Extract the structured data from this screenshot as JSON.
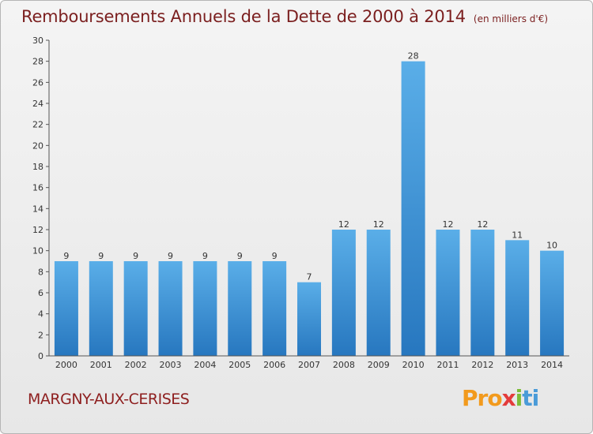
{
  "header": {
    "title": "Remboursements Annuels de la Dette de 2000 à 2014",
    "unit": "(en milliers d'€)"
  },
  "footer": {
    "commune": "MARGNY-AUX-CERISES",
    "logo": {
      "p1": "Pro",
      "p2": "x",
      "p3": "i",
      "p4": "ti"
    }
  },
  "colors": {
    "bar_top": "#5aaee8",
    "bar_bottom": "#2777bf",
    "title": "#7b1f1f"
  },
  "chart_data": {
    "type": "bar",
    "title": "Remboursements Annuels de la Dette de 2000 à 2014",
    "categories": [
      "2000",
      "2001",
      "2002",
      "2003",
      "2004",
      "2005",
      "2006",
      "2007",
      "2008",
      "2009",
      "2010",
      "2011",
      "2012",
      "2013",
      "2014"
    ],
    "values": [
      9,
      9,
      9,
      9,
      9,
      9,
      9,
      7,
      12,
      12,
      28,
      12,
      12,
      11,
      10
    ],
    "ylim": [
      0,
      30
    ],
    "yticks": [
      0,
      2,
      4,
      6,
      8,
      10,
      12,
      14,
      16,
      18,
      20,
      22,
      24,
      26,
      28,
      30
    ],
    "grid": false
  }
}
